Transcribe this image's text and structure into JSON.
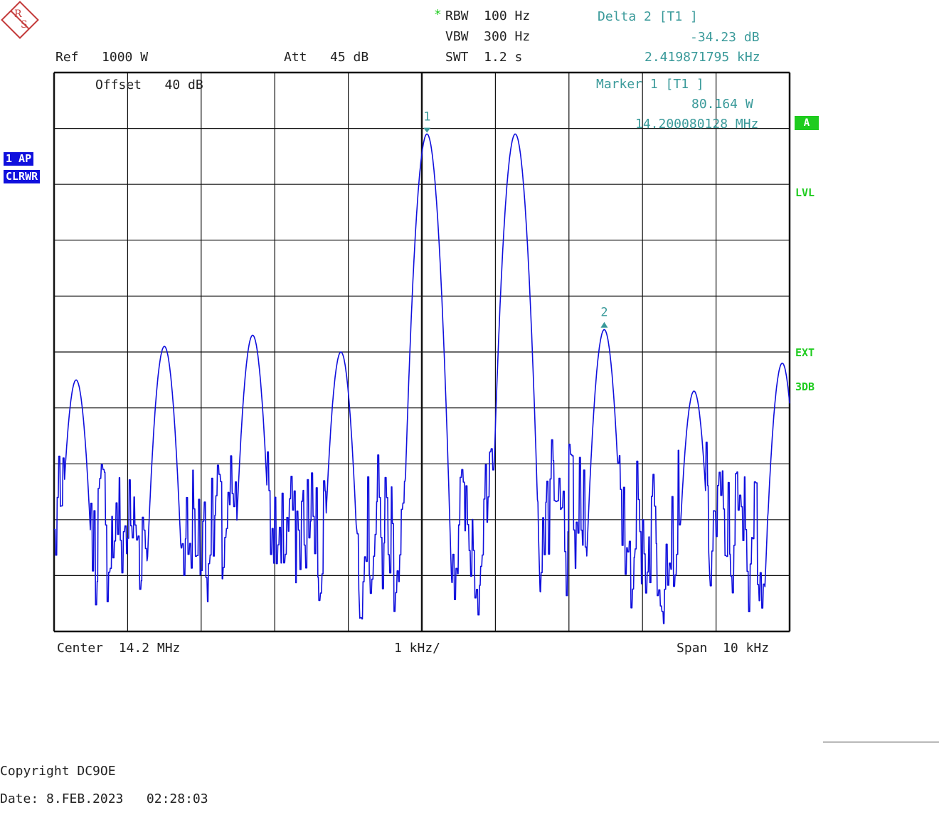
{
  "header": {
    "rbw_star": "*",
    "rbw": "RBW  100 Hz",
    "vbw": "VBW  300 Hz",
    "swt": "SWT  1.2 s",
    "ref": "Ref   1000 W",
    "att": "Att   45 dB",
    "offset": "Offset   40 dB"
  },
  "delta_marker": {
    "title": "Delta 2 [T1 ]",
    "level": "-34.23 dB",
    "freq": "2.419871795 kHz"
  },
  "marker1_readout": {
    "title": "Marker 1 [T1 ]",
    "level": "80.164 W",
    "freq": "14.200080128 MHz"
  },
  "left_badges": {
    "trace": "1 AP",
    "mode": "CLRWR"
  },
  "right_labels": {
    "a": "A",
    "lvl": "LVL",
    "ext": "EXT",
    "db3": "3DB"
  },
  "footer": {
    "center": "Center  14.2 MHz",
    "div": "1 kHz/",
    "span": "Span  10 kHz",
    "copyright": "Copyright DC9OE",
    "date": "Date: 8.FEB.2023   02:28:03"
  },
  "colors": {
    "trace": "#1010dd",
    "marker": "#3a9a9a",
    "grid": "#111111",
    "status": "#1fcc1f"
  },
  "chart_data": {
    "type": "line",
    "title": "",
    "x_unit": "kHz offset from center",
    "xlim": [
      -5,
      5
    ],
    "ylim": [
      0,
      10
    ],
    "y_unit": "grid divisions (top = 10)",
    "grid": true,
    "x_divisions": 10,
    "y_divisions": 10,
    "peaks": [
      {
        "x": -4.7,
        "y": 4.5
      },
      {
        "x": -3.5,
        "y": 5.1
      },
      {
        "x": -2.3,
        "y": 5.3
      },
      {
        "x": -1.1,
        "y": 5.0
      },
      {
        "x": 0.07,
        "y": 8.9
      },
      {
        "x": 1.27,
        "y": 8.9
      },
      {
        "x": 2.48,
        "y": 5.4
      },
      {
        "x": 3.7,
        "y": 4.3
      },
      {
        "x": 4.9,
        "y": 4.8
      }
    ],
    "markers": [
      {
        "label": "1",
        "x": 0.07,
        "y": 9.0
      },
      {
        "label": "2",
        "x": 2.48,
        "y": 5.5
      }
    ]
  }
}
